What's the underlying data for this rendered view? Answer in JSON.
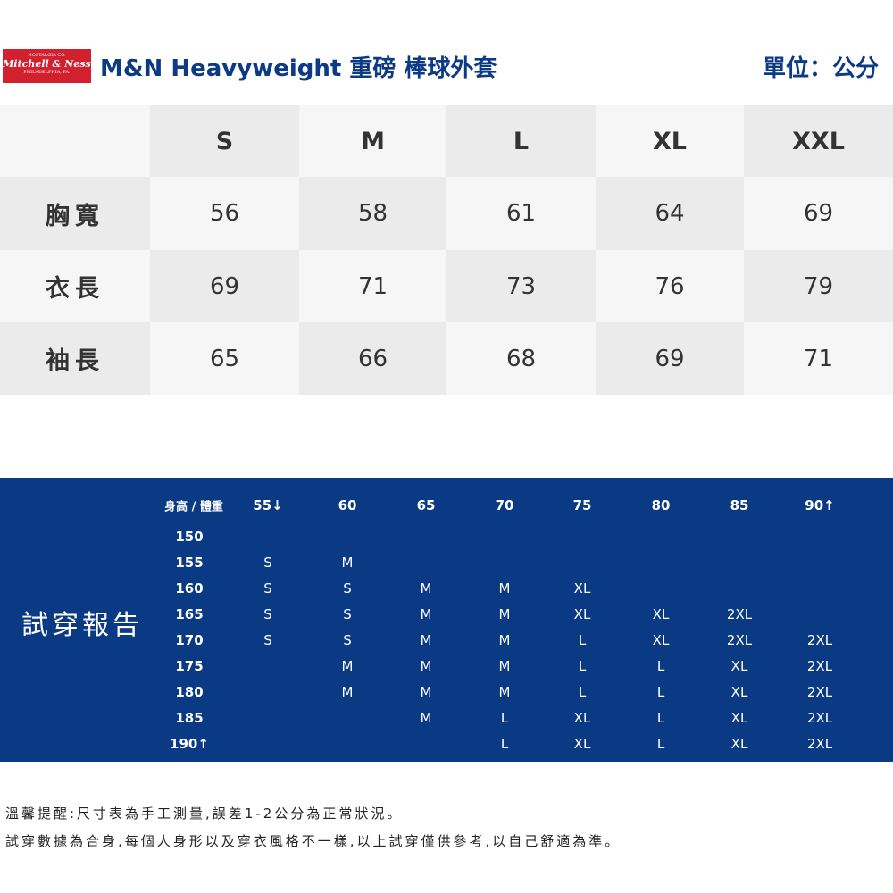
{
  "header": {
    "logo": {
      "top": "NOSTALGIA CO.",
      "brand": "Mitchell & Ness",
      "bottom": "PHILADELPHIA, PA."
    },
    "title": "M&N Heavyweight 重磅 棒球外套",
    "unit": "單位：公分"
  },
  "size_table": {
    "columns": [
      "S",
      "M",
      "L",
      "XL",
      "XXL"
    ],
    "rows": [
      {
        "label": "胸寬",
        "values": [
          56,
          58,
          61,
          64,
          69
        ]
      },
      {
        "label": "衣長",
        "values": [
          69,
          71,
          73,
          76,
          79
        ]
      },
      {
        "label": "袖長",
        "values": [
          65,
          66,
          68,
          69,
          71
        ]
      }
    ]
  },
  "fit_report": {
    "title": "試穿報告",
    "corner": "身高 / 體重",
    "weights": [
      "55↓",
      "60",
      "65",
      "70",
      "75",
      "80",
      "85",
      "90↑"
    ],
    "rows": [
      {
        "height": "150",
        "sizes": [
          null,
          null,
          null,
          null,
          null,
          null,
          null,
          null
        ]
      },
      {
        "height": "155",
        "sizes": [
          "S",
          "M",
          null,
          null,
          null,
          null,
          null,
          null
        ]
      },
      {
        "height": "160",
        "sizes": [
          "S",
          "S",
          "M",
          "M",
          "XL",
          null,
          null,
          null
        ]
      },
      {
        "height": "165",
        "sizes": [
          "S",
          "S",
          "M",
          "M",
          "XL",
          "XL",
          "2XL",
          null
        ]
      },
      {
        "height": "170",
        "sizes": [
          "S",
          "S",
          "M",
          "M",
          "L",
          "XL",
          "2XL",
          "2XL"
        ]
      },
      {
        "height": "175",
        "sizes": [
          null,
          "M",
          "M",
          "M",
          "L",
          "L",
          "XL",
          "2XL"
        ]
      },
      {
        "height": "180",
        "sizes": [
          null,
          "M",
          "M",
          "M",
          "L",
          "L",
          "XL",
          "2XL"
        ]
      },
      {
        "height": "185",
        "sizes": [
          null,
          null,
          "M",
          "L",
          "XL",
          "L",
          "XL",
          "2XL"
        ]
      },
      {
        "height": "190↑",
        "sizes": [
          null,
          null,
          null,
          "L",
          "XL",
          "L",
          "XL",
          "2XL"
        ]
      }
    ]
  },
  "notes": [
    "溫馨提醒:尺寸表為手工測量,誤差1-2公分為正常狀況。",
    "試穿數據為合身,每個人身形以及穿衣風格不一樣,以上試穿僅供參考,以自己舒適為準。"
  ]
}
